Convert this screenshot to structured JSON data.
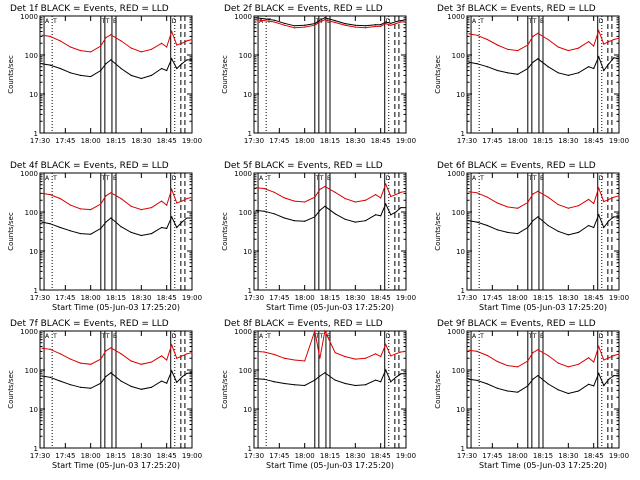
{
  "figure": {
    "background": "#ffffff",
    "series_colors": {
      "events": "#000000",
      "lld": "#dd0000"
    }
  },
  "chart_data": [
    {
      "type": "line",
      "title": "Det 1f BLACK = Events, RED = LLD",
      "xlabel": "",
      "ylabel": "Counts/sec",
      "yscale": "log",
      "ylim": [
        1,
        1000
      ],
      "ytick_labels": [
        "1",
        "10",
        "100",
        "1000"
      ],
      "xlim": [
        17.5,
        19.0
      ],
      "xtick_labels": [
        "17:30",
        "17:45",
        "18:00",
        "18:15",
        "18:30",
        "18:45",
        "19:00"
      ],
      "flags": [
        "A",
        "T",
        "T",
        "T",
        "B",
        "D"
      ],
      "x": [
        17.52,
        17.6,
        17.7,
        17.8,
        17.9,
        18.0,
        18.1,
        18.15,
        18.2,
        18.3,
        18.4,
        18.5,
        18.6,
        18.7,
        18.75,
        18.8,
        18.85,
        18.9,
        18.95,
        19.0
      ],
      "series": [
        {
          "name": "Events",
          "color": "#000000",
          "values": [
            60,
            55,
            45,
            35,
            30,
            28,
            40,
            60,
            75,
            45,
            30,
            25,
            30,
            45,
            40,
            80,
            45,
            60,
            75,
            75
          ]
        },
        {
          "name": "LLD",
          "color": "#dd0000",
          "values": [
            320,
            300,
            230,
            160,
            130,
            120,
            170,
            280,
            330,
            230,
            150,
            120,
            140,
            200,
            160,
            400,
            180,
            200,
            230,
            250
          ]
        }
      ]
    },
    {
      "type": "line",
      "title": "Det 2f BLACK = Events, RED = LLD",
      "xlabel": "",
      "ylabel": "Counts/sec",
      "yscale": "log",
      "ylim": [
        1,
        1000
      ],
      "ytick_labels": [
        "1",
        "10",
        "100",
        "1000"
      ],
      "xlim": [
        17.5,
        19.0
      ],
      "xtick_labels": [
        "17:30",
        "17:45",
        "18:00",
        "18:15",
        "18:30",
        "18:45",
        "19:00"
      ],
      "flags": [
        "A",
        "T",
        "T",
        "T",
        "B",
        "D"
      ],
      "x": [
        17.52,
        17.6,
        17.7,
        17.8,
        17.9,
        18.0,
        18.1,
        18.15,
        18.2,
        18.3,
        18.4,
        18.5,
        18.6,
        18.7,
        18.75,
        18.8,
        18.85,
        18.9,
        18.95,
        19.0
      ],
      "series": [
        {
          "name": "Events",
          "color": "#000000",
          "values": [
            900,
            850,
            780,
            650,
            560,
            580,
            640,
            780,
            900,
            760,
            640,
            580,
            560,
            600,
            600,
            700,
            650,
            720,
            760,
            800
          ]
        },
        {
          "name": "LLD",
          "color": "#dd0000",
          "values": [
            800,
            760,
            700,
            580,
            500,
            520,
            580,
            700,
            800,
            680,
            580,
            520,
            500,
            540,
            540,
            640,
            580,
            640,
            700,
            720
          ]
        }
      ]
    },
    {
      "type": "line",
      "title": "Det 3f BLACK = Events, RED = LLD",
      "xlabel": "",
      "ylabel": "Counts/sec",
      "yscale": "log",
      "ylim": [
        1,
        1000
      ],
      "ytick_labels": [
        "1",
        "10",
        "100",
        "1000"
      ],
      "xlim": [
        17.5,
        19.0
      ],
      "xtick_labels": [
        "17:30",
        "17:45",
        "18:00",
        "18:15",
        "18:30",
        "18:45",
        "19:00"
      ],
      "flags": [
        "A",
        "T",
        "T",
        "T",
        "B",
        "D"
      ],
      "x": [
        17.52,
        17.6,
        17.7,
        17.8,
        17.9,
        18.0,
        18.1,
        18.15,
        18.2,
        18.3,
        18.4,
        18.5,
        18.6,
        18.7,
        18.75,
        18.8,
        18.85,
        18.9,
        18.95,
        19.0
      ],
      "series": [
        {
          "name": "Events",
          "color": "#000000",
          "values": [
            65,
            60,
            50,
            40,
            35,
            32,
            45,
            65,
            80,
            50,
            35,
            30,
            35,
            50,
            45,
            90,
            40,
            60,
            85,
            80
          ]
        },
        {
          "name": "LLD",
          "color": "#dd0000",
          "values": [
            350,
            320,
            250,
            180,
            140,
            130,
            180,
            300,
            360,
            250,
            160,
            130,
            150,
            220,
            170,
            420,
            190,
            220,
            250,
            270
          ]
        }
      ]
    },
    {
      "type": "line",
      "title": "Det 4f BLACK = Events, RED = LLD",
      "xlabel": "Start Time (05-Jun-03 17:25:20)",
      "ylabel": "Counts/sec",
      "yscale": "log",
      "ylim": [
        1,
        1000
      ],
      "ytick_labels": [
        "1",
        "10",
        "100",
        "1000"
      ],
      "xlim": [
        17.5,
        19.0
      ],
      "xtick_labels": [
        "17:30",
        "17:45",
        "18:00",
        "18:15",
        "18:30",
        "18:45",
        "19:00"
      ],
      "flags": [
        "A",
        "T",
        "T",
        "T",
        "B",
        "D"
      ],
      "x": [
        17.52,
        17.6,
        17.7,
        17.8,
        17.9,
        18.0,
        18.1,
        18.15,
        18.2,
        18.3,
        18.4,
        18.5,
        18.6,
        18.7,
        18.75,
        18.8,
        18.85,
        18.9,
        18.95,
        19.0
      ],
      "series": [
        {
          "name": "Events",
          "color": "#000000",
          "values": [
            55,
            50,
            40,
            33,
            28,
            27,
            38,
            55,
            70,
            42,
            30,
            25,
            28,
            40,
            38,
            75,
            40,
            55,
            70,
            70
          ]
        },
        {
          "name": "LLD",
          "color": "#dd0000",
          "values": [
            300,
            280,
            220,
            150,
            120,
            115,
            160,
            260,
            310,
            220,
            140,
            115,
            130,
            190,
            150,
            380,
            170,
            190,
            220,
            240
          ]
        }
      ]
    },
    {
      "type": "line",
      "title": "Det 5f BLACK = Events, RED = LLD",
      "xlabel": "Start Time (05-Jun-03 17:25:20)",
      "ylabel": "Counts/sec",
      "yscale": "log",
      "ylim": [
        1,
        1000
      ],
      "ytick_labels": [
        "1",
        "10",
        "100",
        "1000"
      ],
      "xlim": [
        17.5,
        19.0
      ],
      "xtick_labels": [
        "17:30",
        "17:45",
        "18:00",
        "18:15",
        "18:30",
        "18:45",
        "19:00"
      ],
      "flags": [
        "A",
        "T",
        "T",
        "T",
        "B",
        "D"
      ],
      "x": [
        17.52,
        17.6,
        17.7,
        17.8,
        17.9,
        18.0,
        18.1,
        18.15,
        18.2,
        18.3,
        18.4,
        18.5,
        18.6,
        18.7,
        18.75,
        18.8,
        18.85,
        18.9,
        18.95,
        19.0
      ],
      "series": [
        {
          "name": "Events",
          "color": "#000000",
          "values": [
            110,
            105,
            90,
            70,
            60,
            58,
            75,
            110,
            140,
            90,
            65,
            55,
            60,
            85,
            80,
            160,
            85,
            100,
            130,
            130
          ]
        },
        {
          "name": "LLD",
          "color": "#dd0000",
          "values": [
            420,
            400,
            320,
            230,
            190,
            180,
            240,
            380,
            450,
            320,
            220,
            180,
            200,
            280,
            230,
            520,
            250,
            280,
            320,
            340
          ]
        }
      ]
    },
    {
      "type": "line",
      "title": "Det 6f BLACK = Events, RED = LLD",
      "xlabel": "Start Time (05-Jun-03 17:25:20)",
      "ylabel": "Counts/sec",
      "yscale": "log",
      "ylim": [
        1,
        1000
      ],
      "ytick_labels": [
        "1",
        "10",
        "100",
        "1000"
      ],
      "xlim": [
        17.5,
        19.0
      ],
      "xtick_labels": [
        "17:30",
        "17:45",
        "18:00",
        "18:15",
        "18:30",
        "18:45",
        "19:00"
      ],
      "flags": [
        "A",
        "T",
        "T",
        "T",
        "B",
        "D"
      ],
      "x": [
        17.52,
        17.6,
        17.7,
        17.8,
        17.9,
        18.0,
        18.1,
        18.15,
        18.2,
        18.3,
        18.4,
        18.5,
        18.6,
        18.7,
        18.75,
        18.8,
        18.85,
        18.9,
        18.95,
        19.0
      ],
      "series": [
        {
          "name": "Events",
          "color": "#000000",
          "values": [
            60,
            55,
            45,
            35,
            30,
            28,
            40,
            60,
            75,
            45,
            32,
            26,
            30,
            45,
            40,
            85,
            40,
            60,
            75,
            75
          ]
        },
        {
          "name": "LLD",
          "color": "#dd0000",
          "values": [
            330,
            310,
            240,
            170,
            135,
            125,
            175,
            290,
            340,
            240,
            155,
            125,
            145,
            210,
            165,
            410,
            185,
            210,
            240,
            260
          ]
        }
      ]
    },
    {
      "type": "line",
      "title": "Det 7f BLACK = Events, RED = LLD",
      "xlabel": "Start Time (05-Jun-03 17:25:20)",
      "ylabel": "Counts/sec",
      "yscale": "log",
      "ylim": [
        1,
        1000
      ],
      "ytick_labels": [
        "1",
        "10",
        "100",
        "1000"
      ],
      "xlim": [
        17.5,
        19.0
      ],
      "xtick_labels": [
        "17:30",
        "17:45",
        "18:00",
        "18:15",
        "18:30",
        "18:45",
        "19:00"
      ],
      "flags": [
        "A",
        "T",
        "T",
        "T",
        "B",
        "D"
      ],
      "x": [
        17.52,
        17.6,
        17.7,
        17.8,
        17.9,
        18.0,
        18.1,
        18.15,
        18.2,
        18.3,
        18.4,
        18.5,
        18.6,
        18.7,
        18.75,
        18.8,
        18.85,
        18.9,
        18.95,
        19.0
      ],
      "series": [
        {
          "name": "Events",
          "color": "#000000",
          "values": [
            70,
            65,
            52,
            42,
            36,
            34,
            46,
            68,
            85,
            52,
            38,
            32,
            36,
            52,
            46,
            95,
            48,
            66,
            82,
            85
          ]
        },
        {
          "name": "LLD",
          "color": "#dd0000",
          "values": [
            360,
            340,
            260,
            190,
            150,
            140,
            190,
            310,
            370,
            260,
            170,
            140,
            160,
            230,
            180,
            440,
            200,
            230,
            260,
            280
          ]
        }
      ]
    },
    {
      "type": "line",
      "title": "Det 8f BLACK = Events, RED = LLD",
      "xlabel": "Start Time (05-Jun-03 17:25:20)",
      "ylabel": "Counts/sec",
      "yscale": "log",
      "ylim": [
        1,
        1000
      ],
      "ytick_labels": [
        "1",
        "10",
        "100",
        "1000"
      ],
      "xlim": [
        17.5,
        19.0
      ],
      "xtick_labels": [
        "17:30",
        "17:45",
        "18:00",
        "18:15",
        "18:30",
        "18:45",
        "19:00"
      ],
      "flags": [
        "A",
        "T",
        "T",
        "T",
        "B",
        "D"
      ],
      "x": [
        17.52,
        17.6,
        17.7,
        17.8,
        17.9,
        18.0,
        18.1,
        18.15,
        18.2,
        18.3,
        18.4,
        18.5,
        18.6,
        18.7,
        18.75,
        18.8,
        18.85,
        18.9,
        18.95,
        19.0
      ],
      "series": [
        {
          "name": "Events",
          "color": "#000000",
          "values": [
            60,
            58,
            50,
            45,
            42,
            40,
            55,
            70,
            85,
            55,
            45,
            40,
            42,
            55,
            50,
            100,
            50,
            65,
            80,
            80
          ]
        },
        {
          "name": "LLD",
          "color": "#dd0000",
          "values": [
            300,
            290,
            250,
            200,
            180,
            170,
            1000,
            200,
            1000,
            280,
            220,
            190,
            200,
            260,
            220,
            450,
            230,
            260,
            290,
            300
          ]
        }
      ]
    },
    {
      "type": "line",
      "title": "Det 9f BLACK = Events, RED = LLD",
      "xlabel": "Start Time (05-Jun-03 17:25:20)",
      "ylabel": "Counts/sec",
      "yscale": "log",
      "ylim": [
        1,
        1000
      ],
      "ytick_labels": [
        "1",
        "10",
        "100",
        "1000"
      ],
      "xlim": [
        17.5,
        19.0
      ],
      "xtick_labels": [
        "17:30",
        "17:45",
        "18:00",
        "18:15",
        "18:30",
        "18:45",
        "19:00"
      ],
      "flags": [
        "A",
        "T",
        "T",
        "T",
        "B",
        "D"
      ],
      "x": [
        17.52,
        17.6,
        17.7,
        17.8,
        17.9,
        18.0,
        18.1,
        18.15,
        18.2,
        18.3,
        18.4,
        18.5,
        18.6,
        18.7,
        18.75,
        18.8,
        18.85,
        18.9,
        18.95,
        19.0
      ],
      "series": [
        {
          "name": "Events",
          "color": "#000000",
          "values": [
            58,
            54,
            44,
            34,
            29,
            27,
            39,
            58,
            72,
            44,
            31,
            25,
            29,
            43,
            39,
            82,
            40,
            58,
            72,
            72
          ]
        },
        {
          "name": "LLD",
          "color": "#dd0000",
          "values": [
            320,
            300,
            235,
            165,
            130,
            120,
            170,
            280,
            330,
            235,
            150,
            120,
            140,
            205,
            160,
            400,
            180,
            205,
            235,
            255
          ]
        }
      ]
    }
  ]
}
